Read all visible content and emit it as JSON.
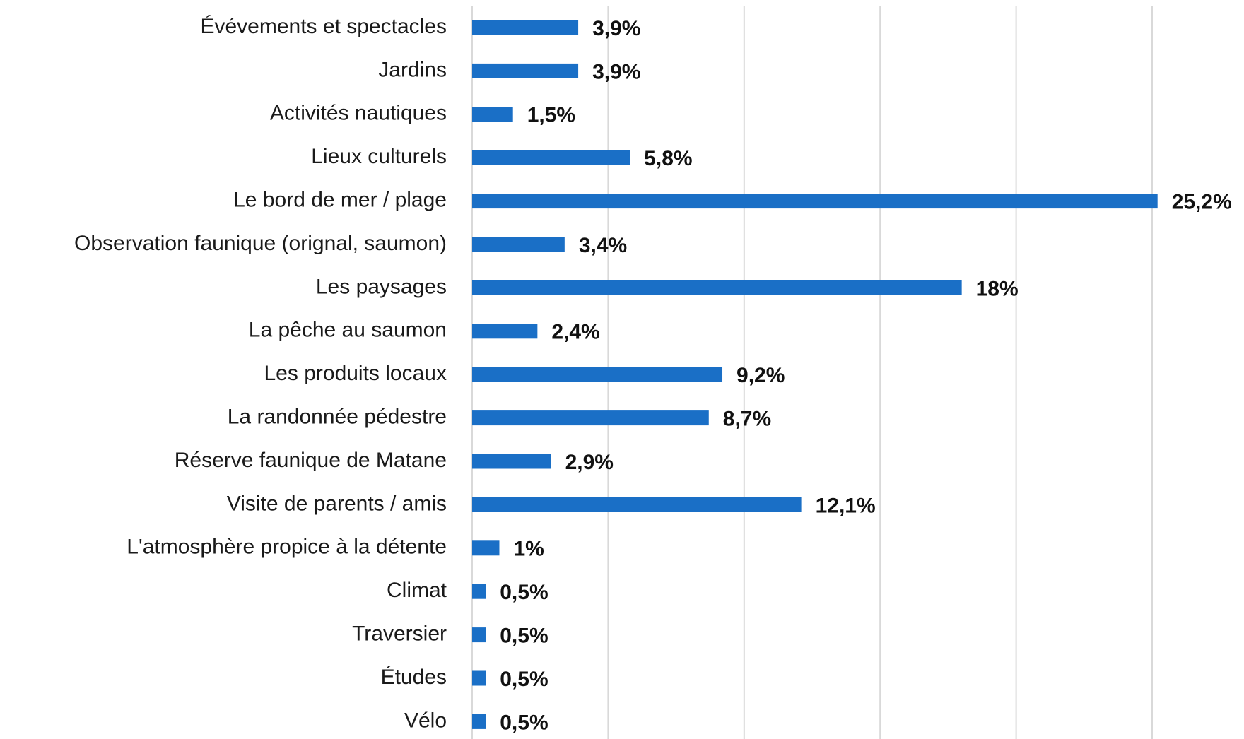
{
  "chart_data": {
    "type": "barh",
    "categories": [
      "Évévements et spectacles",
      "Jardins",
      "Activités nautiques",
      "Lieux culturels",
      "Le bord de mer / plage",
      "Observation faunique (orignal, saumon)",
      "Les paysages",
      "La pêche au saumon",
      "Les produits locaux",
      "La randonnée pédestre",
      "Réserve faunique de Matane",
      "Visite de parents / amis",
      "L'atmosphère propice à la détente",
      "Climat",
      "Traversier",
      "Études",
      "Vélo"
    ],
    "values": [
      3.9,
      3.9,
      1.5,
      5.8,
      25.2,
      3.4,
      18,
      2.4,
      9.2,
      8.7,
      2.9,
      12.1,
      1,
      0.5,
      0.5,
      0.5,
      0.5
    ],
    "value_labels": [
      "3,9%",
      "3,9%",
      "1,5%",
      "5,8%",
      "25,2%",
      "3,4%",
      "18%",
      "2,4%",
      "9,2%",
      "8,7%",
      "2,9%",
      "12,1%",
      "1%",
      "0,5%",
      "0,5%",
      "0,5%",
      "0,5%"
    ],
    "color": "#1a6fc6",
    "xlim": [
      0,
      25
    ],
    "xticks": [
      0,
      5,
      10,
      15,
      20,
      25
    ],
    "grid": true
  }
}
